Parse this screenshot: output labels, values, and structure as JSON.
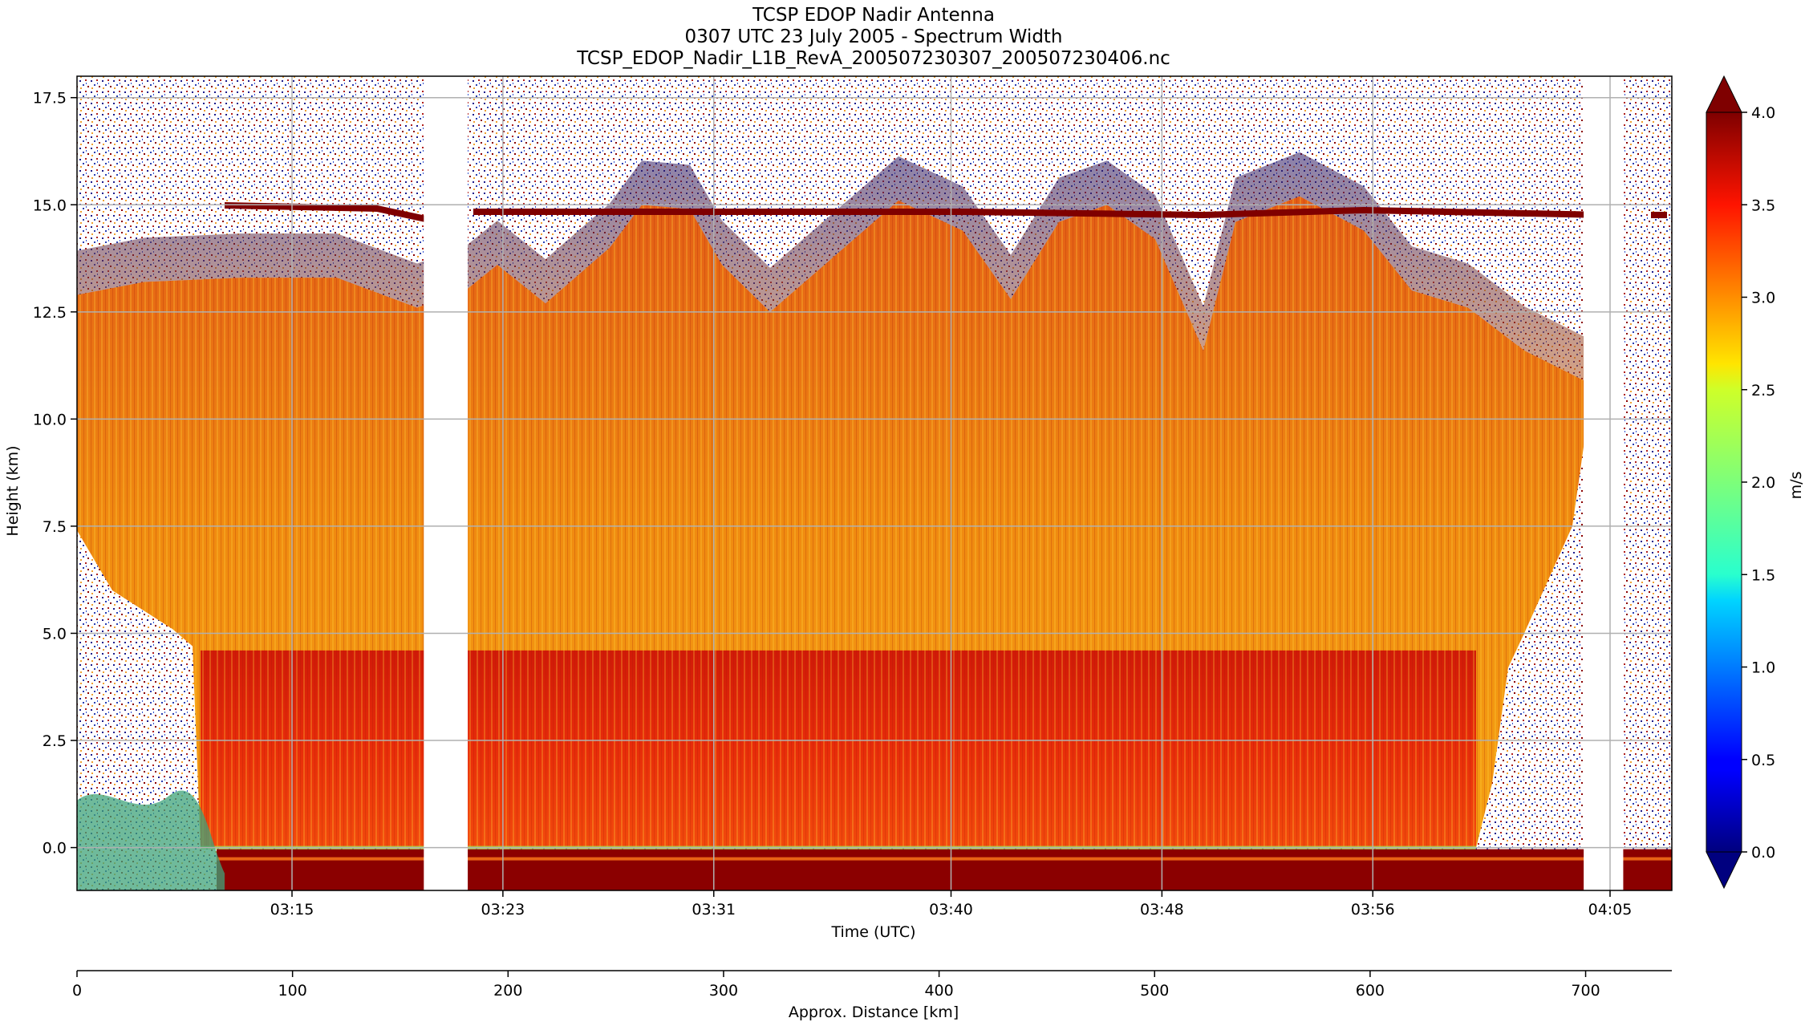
{
  "chart_data": {
    "type": "heatmap",
    "title_lines": [
      "TCSP EDOP Nadir Antenna",
      "0307 UTC 23 July 2005 - Spectrum Width",
      "TCSP_EDOP_Nadir_L1B_RevA_200507230307_200507230406.nc"
    ],
    "xlabel": "Time (UTC)",
    "ylabel": "Height (km)",
    "x_ticks": [
      "03:15",
      "03:23",
      "03:31",
      "03:40",
      "03:48",
      "03:56",
      "04:05"
    ],
    "y_ticks": [
      "0.0",
      "2.5",
      "5.0",
      "7.5",
      "10.0",
      "12.5",
      "15.0",
      "17.5"
    ],
    "ylim": [
      -1,
      18
    ],
    "grid": true,
    "colorbar": {
      "label": "m/s",
      "range": [
        0.0,
        4.0
      ],
      "ticks": [
        "0.0",
        "0.5",
        "1.0",
        "1.5",
        "2.0",
        "2.5",
        "3.0",
        "3.5",
        "4.0"
      ],
      "colormap": "jet",
      "extend": "both"
    },
    "secondary_axis": {
      "label": "Approx. Distance [km]",
      "ticks": [
        "0",
        "100",
        "200",
        "300",
        "400",
        "500",
        "600",
        "700"
      ],
      "range": [
        0,
        740
      ]
    },
    "features": {
      "tropopause_line_km": 14.8,
      "melting_layer_km": 4.6,
      "surface_km": 0.0,
      "data_gaps_utc": [
        [
          "03:20:00",
          "03:21:40"
        ],
        [
          "04:04:00",
          "04:05:30"
        ]
      ]
    }
  }
}
